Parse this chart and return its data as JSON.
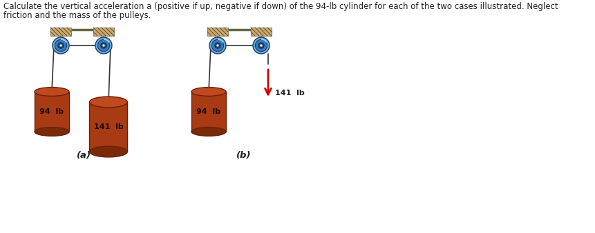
{
  "title_line1": "Calculate the vertical acceleration a (positive if up, negative if down) of the 94-lb cylinder for each of the two cases illustrated. Neglect",
  "title_line2": "friction and the mass of the pulleys.",
  "title_fontsize": 8.5,
  "bg_color": "#ffffff",
  "block_color_top": "#c0491e",
  "block_color_mid": "#a83a14",
  "block_color_bot": "#7a2a08",
  "block_edge_color": "#6a2008",
  "ceiling_color": "#c8a87a",
  "ceiling_stripe_color": "#6B4C10",
  "rope_color": "#333333",
  "pulley_outer": "#6aabdd",
  "pulley_mid": "#3a7ab8",
  "pulley_inner": "#1a4a88",
  "pulley_highlight": "#a0ccee",
  "case_a_label": "(a)",
  "case_b_label": "(b)",
  "label_94": "94  lb",
  "label_141": "141  lb",
  "label_141b": "141  lb",
  "arrow_color": "#cc0000",
  "label_fontsize": 8.0,
  "case_label_fontsize": 9.5,
  "text_color": "#222222"
}
